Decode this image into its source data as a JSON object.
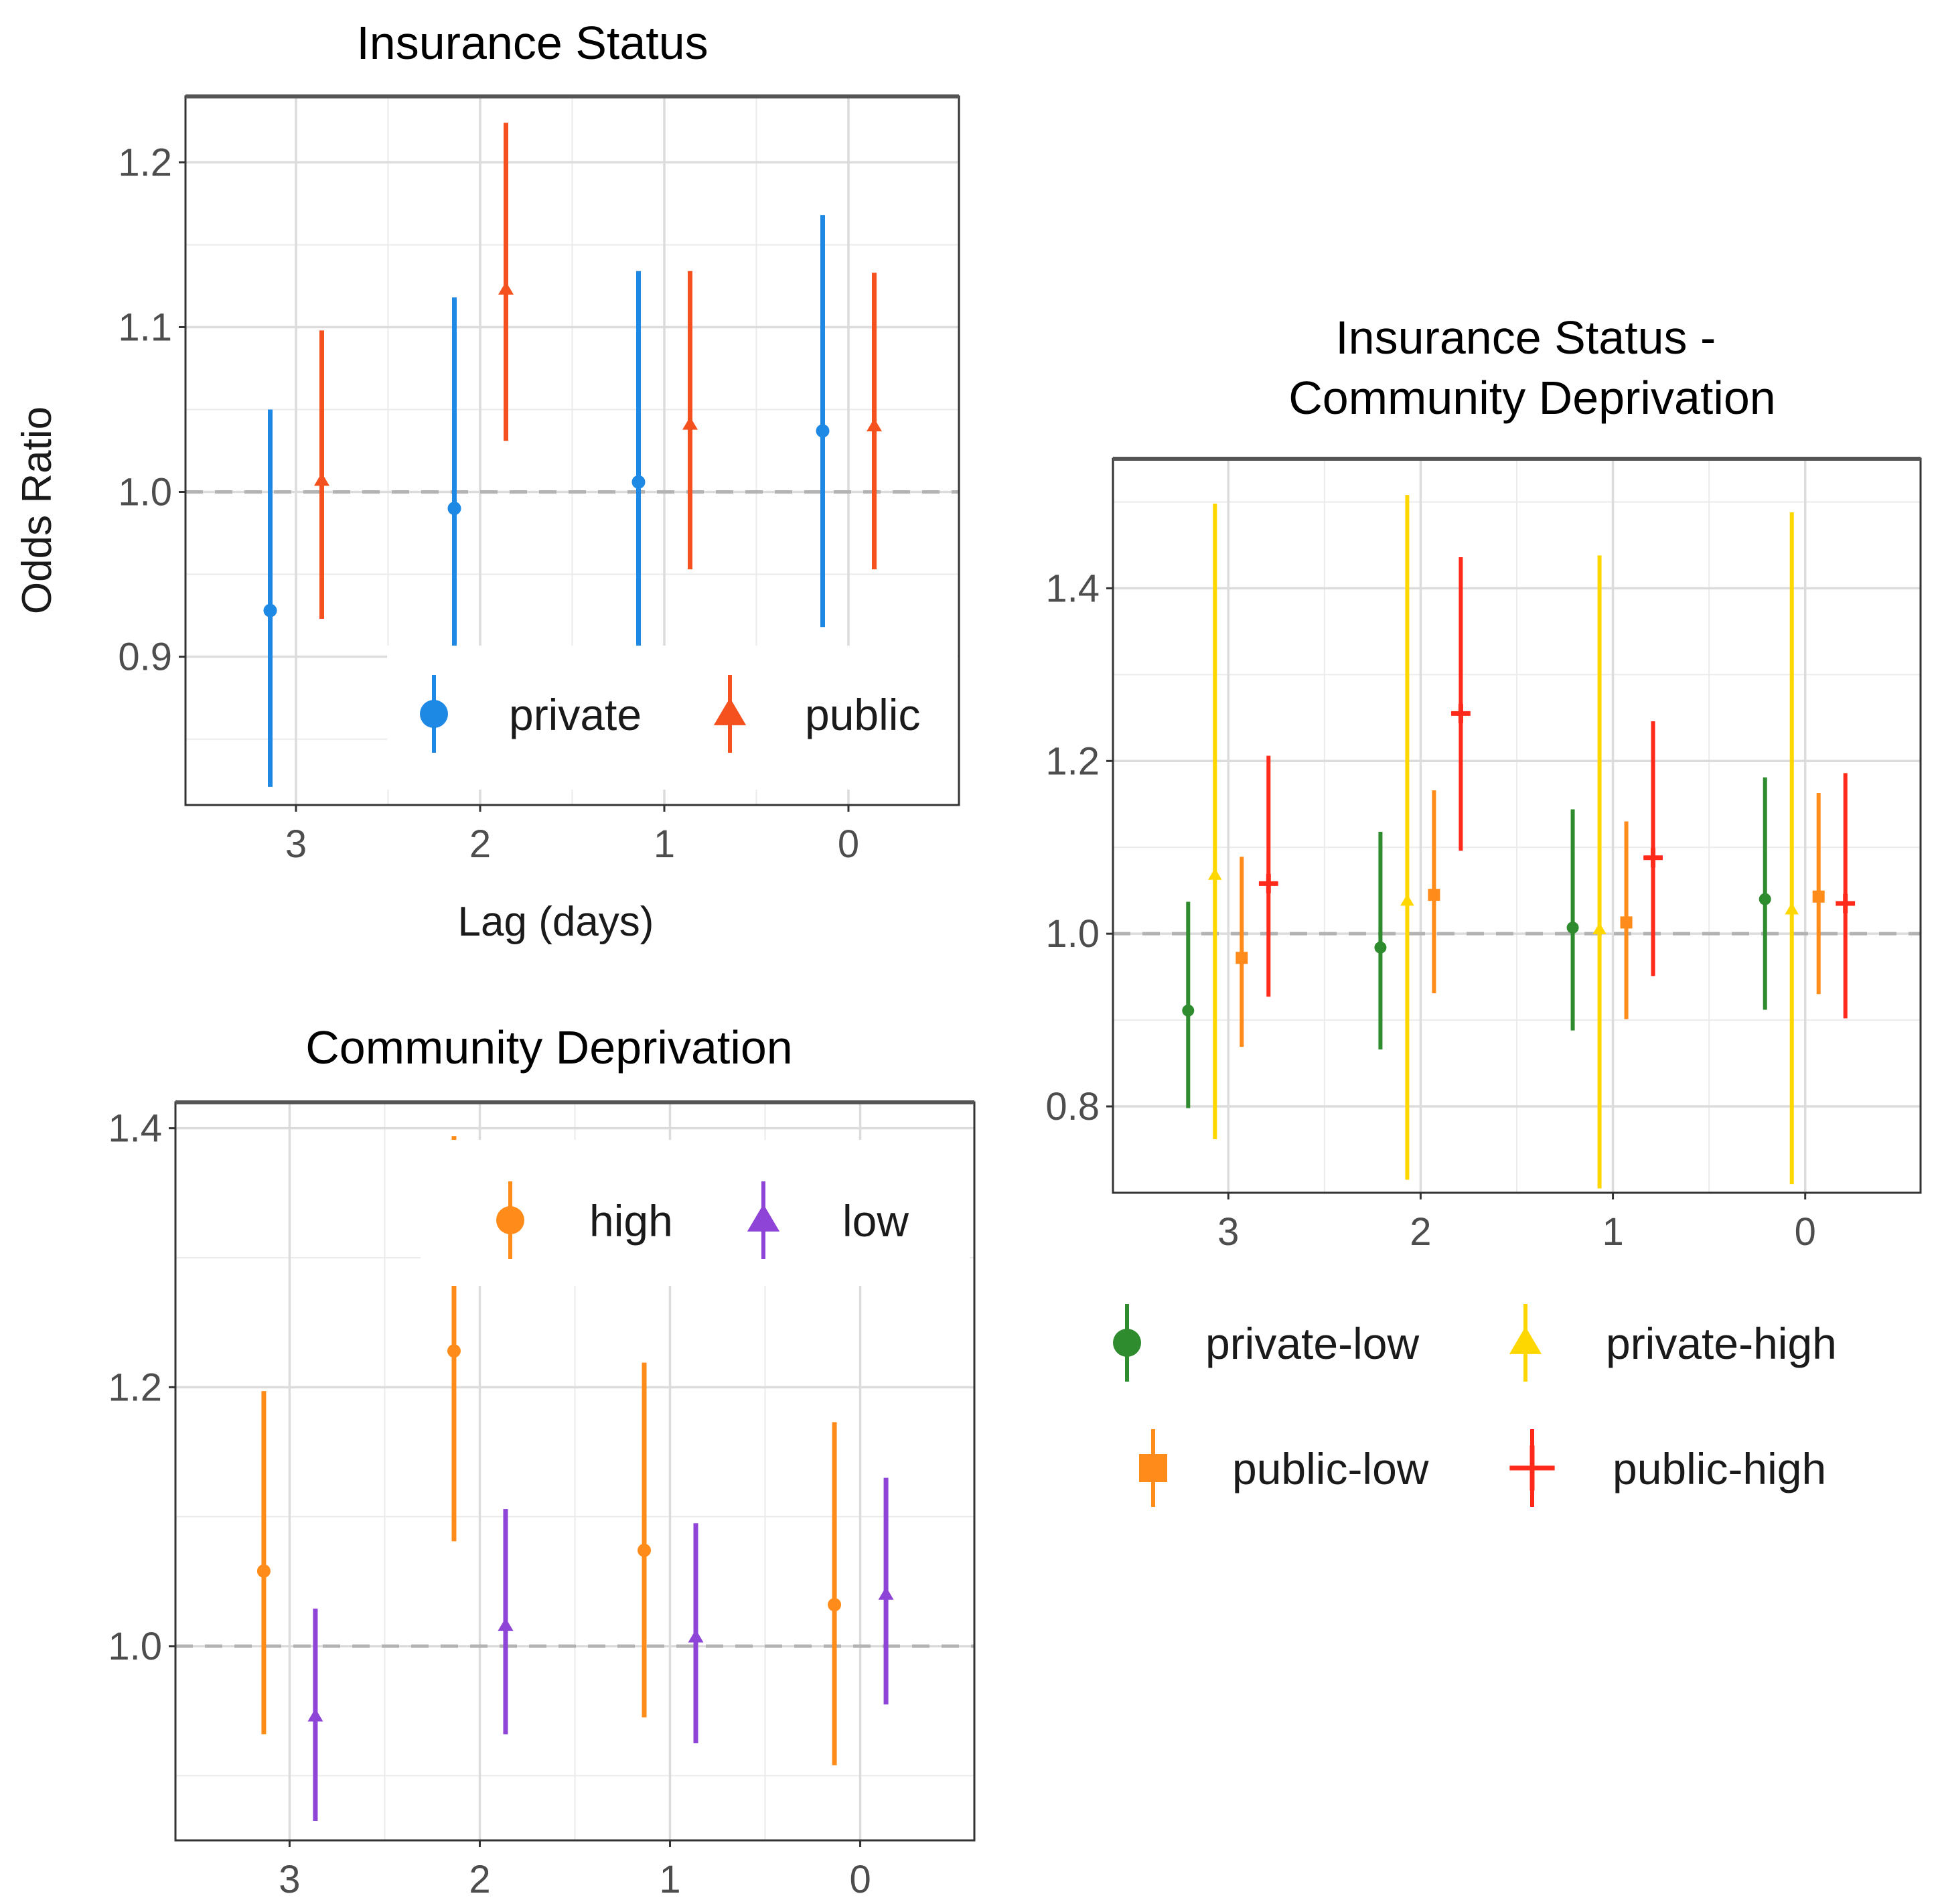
{
  "chart_data": [
    {
      "type": "errorbar",
      "title": "Insurance Status",
      "xlabel": "Lag (days)",
      "ylabel": "Odds Ratio",
      "categories": [
        "3",
        "2",
        "1",
        "0"
      ],
      "ylim": [
        0.81,
        1.24
      ],
      "yticks": [
        "0.9",
        "1.0",
        "1.1",
        "1.2"
      ],
      "reference_line": 1.0,
      "legend": "inside-bottom-right",
      "series": [
        {
          "name": "private",
          "color": "#1E88E5",
          "shape": "circle",
          "estimate": [
            0.928,
            0.99,
            1.006,
            1.037
          ],
          "lower": [
            0.821,
            0.9,
            0.9,
            0.918
          ],
          "upper": [
            1.05,
            1.118,
            1.134,
            1.168
          ]
        },
        {
          "name": "public",
          "color": "#F4511E",
          "shape": "triangle",
          "estimate": [
            1.007,
            1.123,
            1.041,
            1.04
          ],
          "lower": [
            0.923,
            1.031,
            0.953,
            0.953
          ],
          "upper": [
            1.098,
            1.224,
            1.134,
            1.133
          ]
        }
      ]
    },
    {
      "type": "errorbar",
      "title": "Community Deprivation",
      "xlabel": "",
      "ylabel": "",
      "categories": [
        "3",
        "2",
        "1",
        "0"
      ],
      "ylim": [
        0.85,
        1.42
      ],
      "yticks": [
        "1.0",
        "1.2",
        "1.4"
      ],
      "reference_line": 1.0,
      "legend": "inside-top-right",
      "series": [
        {
          "name": "high",
          "color": "#FF8C1A",
          "shape": "circle",
          "estimate": [
            1.058,
            1.228,
            1.074,
            1.032
          ],
          "lower": [
            0.932,
            1.081,
            0.945,
            0.908
          ],
          "upper": [
            1.197,
            1.394,
            1.219,
            1.173
          ]
        },
        {
          "name": "low",
          "color": "#8E44D6",
          "shape": "triangle",
          "estimate": [
            0.946,
            1.016,
            1.007,
            1.04
          ],
          "lower": [
            0.865,
            0.932,
            0.925,
            0.955
          ],
          "upper": [
            1.029,
            1.106,
            1.095,
            1.13
          ]
        }
      ]
    },
    {
      "type": "errorbar",
      "title": "Insurance Status -\nCommunity Deprivation",
      "xlabel": "",
      "ylabel": "",
      "categories": [
        "3",
        "2",
        "1",
        "0"
      ],
      "ylim": [
        0.7,
        1.55
      ],
      "yticks": [
        "0.8",
        "1.0",
        "1.2",
        "1.4"
      ],
      "reference_line": 1.0,
      "legend": "bottom",
      "series": [
        {
          "name": "private-low",
          "color": "#2E8B2E",
          "shape": "circle",
          "estimate": [
            0.911,
            0.984,
            1.007,
            1.04
          ],
          "lower": [
            0.798,
            0.866,
            0.888,
            0.912
          ],
          "upper": [
            1.037,
            1.118,
            1.144,
            1.181
          ]
        },
        {
          "name": "private-high",
          "color": "#FFD700",
          "shape": "triangle",
          "estimate": [
            1.068,
            1.038,
            1.005,
            1.028
          ],
          "lower": [
            0.762,
            0.715,
            0.705,
            0.71
          ],
          "upper": [
            1.498,
            1.508,
            1.438,
            1.488
          ]
        },
        {
          "name": "public-low",
          "color": "#FF8C1A",
          "shape": "square",
          "estimate": [
            0.972,
            1.045,
            1.013,
            1.043
          ],
          "lower": [
            0.869,
            0.931,
            0.901,
            0.93
          ],
          "upper": [
            1.089,
            1.166,
            1.13,
            1.163
          ]
        },
        {
          "name": "public-high",
          "color": "#FF2A1A",
          "shape": "cross",
          "estimate": [
            1.058,
            1.255,
            1.088,
            1.035
          ],
          "lower": [
            0.927,
            1.096,
            0.951,
            0.902
          ],
          "upper": [
            1.206,
            1.436,
            1.246,
            1.186
          ]
        }
      ]
    }
  ]
}
